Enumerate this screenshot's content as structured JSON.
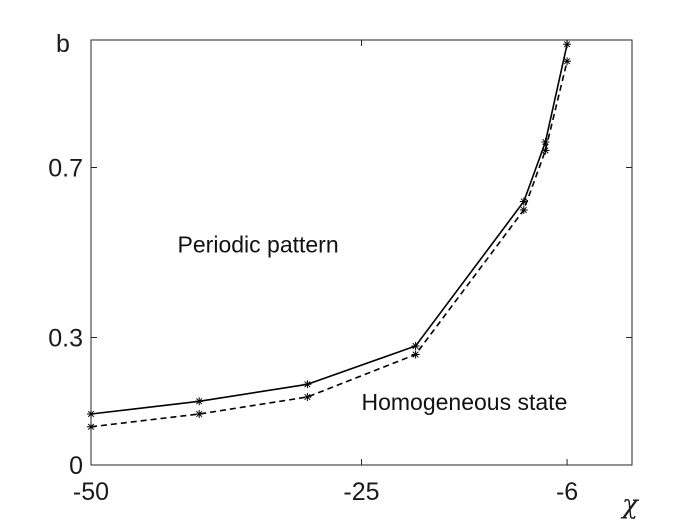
{
  "chart_data": {
    "type": "line",
    "title": "",
    "xlabel": "χ",
    "ylabel": "b",
    "xlim": [
      -50,
      0
    ],
    "ylim": [
      0,
      1
    ],
    "xticks": [
      -50,
      -25,
      -6
    ],
    "xtick_labels": [
      "-50",
      "-25",
      "-6"
    ],
    "yticks": [
      0,
      0.3,
      0.7
    ],
    "ytick_labels": [
      "0",
      "0.3",
      "0.7"
    ],
    "grid": false,
    "series": [
      {
        "style": "solid",
        "marker": "asterisk",
        "x": [
          -50,
          -40,
          -30,
          -20,
          -10,
          -8,
          -6
        ],
        "y": [
          0.12,
          0.15,
          0.19,
          0.28,
          0.62,
          0.76,
          0.99
        ]
      },
      {
        "style": "dashed",
        "marker": "asterisk",
        "x": [
          -50,
          -40,
          -30,
          -20,
          -10,
          -8,
          -6
        ],
        "y": [
          0.09,
          0.12,
          0.16,
          0.26,
          0.6,
          0.74,
          0.95
        ]
      }
    ],
    "annotations": [
      {
        "text": "Periodic pattern",
        "x": -42,
        "y": 0.5
      },
      {
        "text": "Homogeneous state",
        "x": -25,
        "y": 0.13
      }
    ]
  }
}
